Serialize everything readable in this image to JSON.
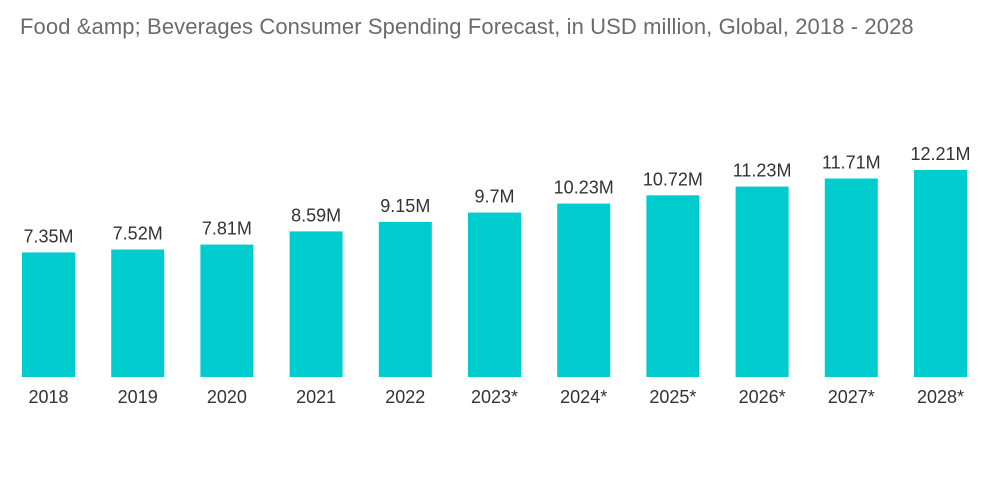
{
  "chart_data": {
    "type": "bar",
    "title": "Food &amp; Beverages Consumer Spending Forecast, in USD million, Global, 2018 - 2028",
    "xlabel": "",
    "ylabel": "",
    "grid": false,
    "legend": "none",
    "ylim": [
      0,
      12.21
    ],
    "categories": [
      "2018",
      "2019",
      "2020",
      "2021",
      "2022",
      "2023*",
      "2024*",
      "2025*",
      "2026*",
      "2027*",
      "2028*"
    ],
    "values": [
      7.35,
      7.52,
      7.81,
      8.59,
      9.15,
      9.7,
      10.23,
      10.72,
      11.23,
      11.71,
      12.21
    ],
    "value_labels": [
      "7.35M",
      "7.52M",
      "7.81M",
      "8.59M",
      "9.15M",
      "9.7M",
      "10.23M",
      "10.72M",
      "11.23M",
      "11.71M",
      "12.21M"
    ],
    "colors": {
      "bar": "#00cccd",
      "title": "#6b6b6b",
      "text": "#333333"
    }
  }
}
